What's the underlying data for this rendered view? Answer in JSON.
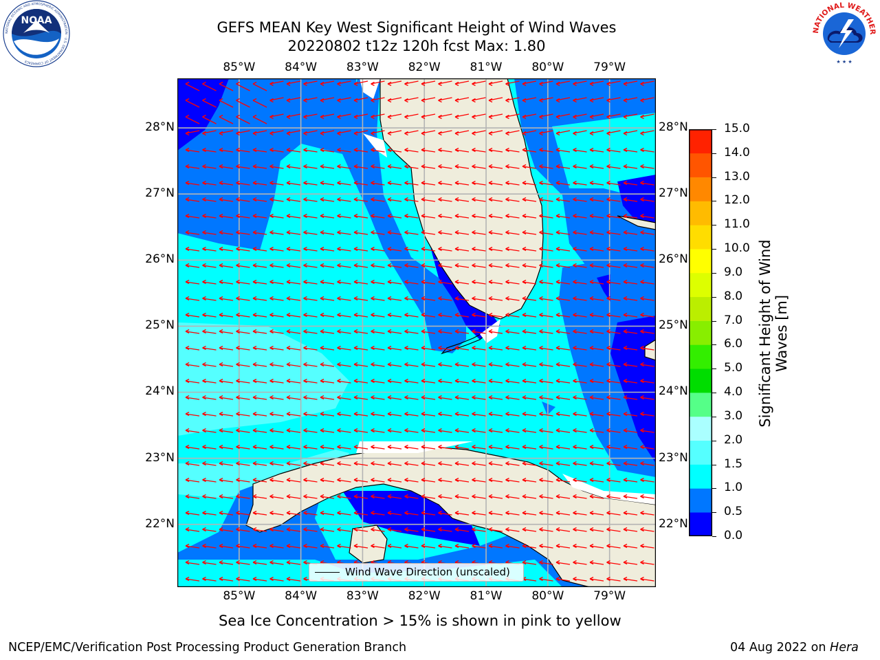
{
  "header": {
    "title_line1": "GEFS MEAN Key West Significant Height of Wind Waves",
    "title_line2": "20220802 t12z 120h fcst    Max: 1.80"
  },
  "logos": {
    "left_name": "noaa-logo",
    "left_text": "NOAA",
    "left_ring_text": "NATIONAL OCEANIC AND ATMOSPHERIC ADMINISTRATION · U.S. DEPARTMENT OF COMMERCE",
    "right_name": "nws-logo",
    "right_ring_text": "NATIONAL WEATHER SERVICE"
  },
  "map": {
    "lon_range": [
      -86.0,
      -78.25
    ],
    "lat_range": [
      21.05,
      28.75
    ],
    "lon_ticks": [
      "85°W",
      "84°W",
      "83°W",
      "82°W",
      "81°W",
      "80°W",
      "79°W"
    ],
    "lon_values": [
      -85,
      -84,
      -83,
      -82,
      -81,
      -80,
      -79
    ],
    "lat_ticks": [
      "28°N",
      "27°N",
      "26°N",
      "25°N",
      "24°N",
      "23°N",
      "22°N"
    ],
    "lat_values": [
      28,
      27,
      26,
      25,
      24,
      23,
      22
    ],
    "grid": true,
    "colors": {
      "land": "#efeddc",
      "ocean_default": "#00ffff",
      "arrow": "#ff0000",
      "coastline": "#000000",
      "gridline": "#b4b4b4"
    }
  },
  "legend": {
    "label": "Wind Wave Direction (unscaled)",
    "placement": "lower-center"
  },
  "colorbar": {
    "title_line1": "Significant Height of Wind",
    "title_line2": "Waves [m]",
    "labels": [
      "15.0",
      "14.0",
      "13.0",
      "12.0",
      "11.0",
      "10.0",
      "9.0",
      "8.0",
      "7.0",
      "6.0",
      "5.0",
      "4.0",
      "3.0",
      "2.0",
      "1.5",
      "1.0",
      "0.5",
      "0.0"
    ],
    "bin_colors_bottom_to_top": [
      "#0000ff",
      "#0077ff",
      "#00ffff",
      "#55ffff",
      "#aaffff",
      "#55ff88",
      "#00dd00",
      "#33ee00",
      "#88ee00",
      "#bbee00",
      "#ddff00",
      "#ffff00",
      "#ffdd00",
      "#ffbb00",
      "#ff8800",
      "#ff5500",
      "#ff2200",
      "#ff0000"
    ]
  },
  "footer": {
    "ice_note": "Sea Ice Concentration > 15% is shown in pink to yellow",
    "branch": "NCEP/EMC/Verification Post Processing Product Generation Branch",
    "date": "04 Aug 2022 on ",
    "machine": "Hera"
  }
}
